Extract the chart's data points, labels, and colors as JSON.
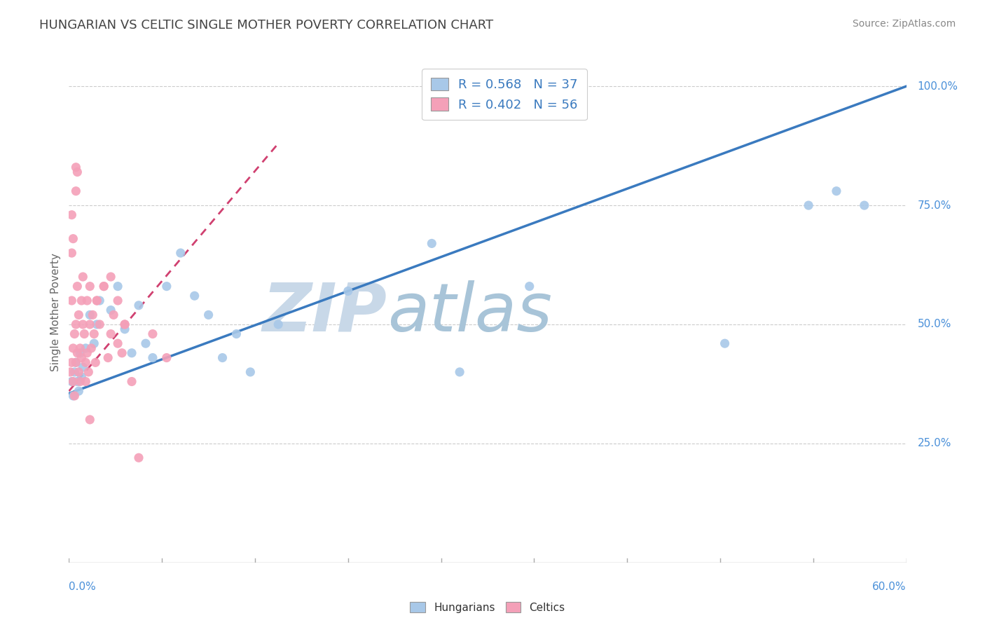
{
  "title": "HUNGARIAN VS CELTIC SINGLE MOTHER POVERTY CORRELATION CHART",
  "source": "Source: ZipAtlas.com",
  "ylabel": "Single Mother Poverty",
  "xmin": 0.0,
  "xmax": 0.6,
  "ymin": 0.0,
  "ymax": 1.05,
  "hungarian_R": 0.568,
  "hungarian_N": 37,
  "celtic_R": 0.402,
  "celtic_N": 56,
  "hungarian_color": "#a8c8e8",
  "celtic_color": "#f4a0b8",
  "trendline_hungarian_color": "#3a7abf",
  "trendline_celtic_color": "#d04070",
  "trendline_celtic_dashed": true,
  "watermark_color": "#ddeeff",
  "background_color": "#ffffff",
  "axis_label_color": "#4a90d9",
  "grid_color": "#cccccc",
  "title_color": "#444444",
  "source_color": "#888888",
  "ylabel_color": "#666666",
  "legend_label_color": "#3a7abf",
  "bottom_legend_label_color": "#333333",
  "hungarian_points_x": [
    0.002,
    0.003,
    0.004,
    0.005,
    0.006,
    0.007,
    0.008,
    0.009,
    0.01,
    0.012,
    0.015,
    0.018,
    0.02,
    0.022,
    0.03,
    0.035,
    0.04,
    0.045,
    0.05,
    0.055,
    0.06,
    0.07,
    0.08,
    0.09,
    0.1,
    0.11,
    0.12,
    0.13,
    0.15,
    0.2,
    0.26,
    0.28,
    0.33,
    0.47,
    0.53,
    0.55,
    0.57
  ],
  "hungarian_points_y": [
    0.38,
    0.35,
    0.4,
    0.42,
    0.38,
    0.36,
    0.44,
    0.39,
    0.41,
    0.45,
    0.52,
    0.46,
    0.5,
    0.55,
    0.53,
    0.58,
    0.49,
    0.44,
    0.54,
    0.46,
    0.43,
    0.58,
    0.65,
    0.56,
    0.52,
    0.43,
    0.48,
    0.4,
    0.5,
    0.57,
    0.67,
    0.4,
    0.58,
    0.46,
    0.75,
    0.78,
    0.75
  ],
  "celtic_points_x": [
    0.001,
    0.002,
    0.002,
    0.003,
    0.003,
    0.004,
    0.004,
    0.005,
    0.005,
    0.006,
    0.006,
    0.007,
    0.007,
    0.008,
    0.008,
    0.009,
    0.009,
    0.01,
    0.01,
    0.011,
    0.012,
    0.012,
    0.013,
    0.013,
    0.014,
    0.015,
    0.015,
    0.016,
    0.017,
    0.018,
    0.019,
    0.02,
    0.022,
    0.025,
    0.028,
    0.03,
    0.032,
    0.035,
    0.038,
    0.04,
    0.045,
    0.005,
    0.005,
    0.006,
    0.003,
    0.002,
    0.002,
    0.05,
    0.06,
    0.07,
    0.015,
    0.02,
    0.025,
    0.03,
    0.035,
    0.04
  ],
  "celtic_points_y": [
    0.4,
    0.42,
    0.55,
    0.38,
    0.45,
    0.35,
    0.48,
    0.5,
    0.42,
    0.58,
    0.44,
    0.4,
    0.52,
    0.38,
    0.45,
    0.55,
    0.43,
    0.5,
    0.6,
    0.48,
    0.42,
    0.38,
    0.55,
    0.44,
    0.4,
    0.58,
    0.5,
    0.45,
    0.52,
    0.48,
    0.42,
    0.55,
    0.5,
    0.58,
    0.43,
    0.48,
    0.52,
    0.46,
    0.44,
    0.5,
    0.38,
    0.78,
    0.83,
    0.82,
    0.68,
    0.65,
    0.73,
    0.22,
    0.48,
    0.43,
    0.3,
    0.55,
    0.58,
    0.6,
    0.55,
    0.5
  ],
  "htrendline_x0": 0.0,
  "htrendline_y0": 0.355,
  "htrendline_x1": 0.6,
  "htrendline_y1": 1.0,
  "ctrendline_x0": 0.0,
  "ctrendline_y0": 0.36,
  "ctrendline_x1": 0.15,
  "ctrendline_y1": 0.88,
  "yaxis_ticks": [
    0.25,
    0.5,
    0.75,
    1.0
  ],
  "yaxis_labels": [
    "25.0%",
    "50.0%",
    "75.0%",
    "100.0%"
  ]
}
